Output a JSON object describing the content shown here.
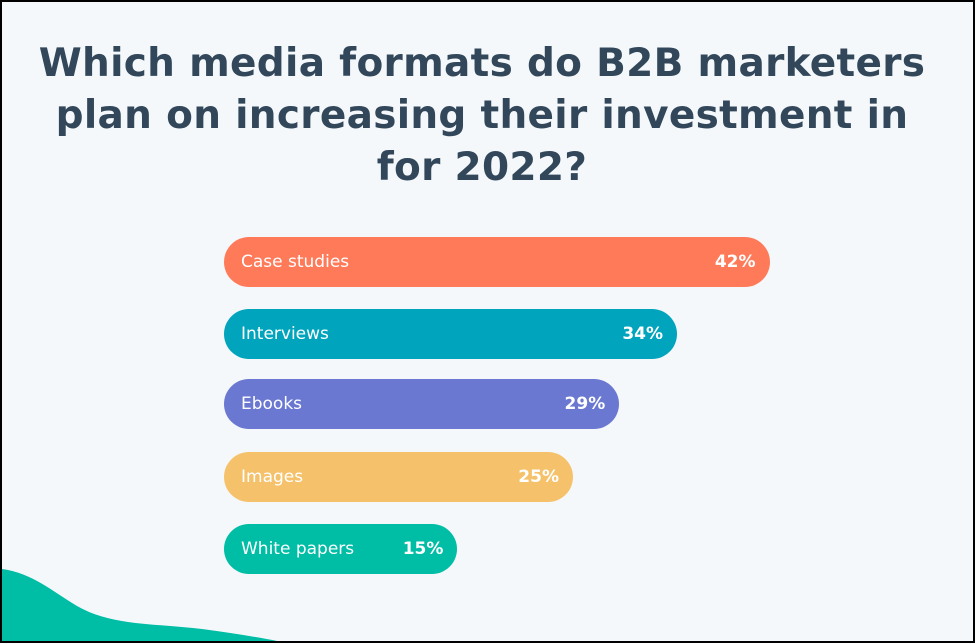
{
  "chart_data": {
    "type": "bar",
    "orientation": "horizontal",
    "title": "Which media formats do B2B marketers plan on increasing their investment in for 2022?",
    "categories": [
      "Case studies",
      "Interviews",
      "Ebooks",
      "Images",
      "White papers"
    ],
    "values": [
      42,
      34,
      29,
      25,
      15
    ],
    "value_labels": [
      "42%",
      "34%",
      "29%",
      "25%",
      "15%"
    ],
    "colors": [
      "#ff7a59",
      "#00a4bd",
      "#6a78d1",
      "#f5c26b",
      "#00bda5"
    ],
    "unit": "%",
    "xlabel": "",
    "ylabel": "",
    "grid": false
  },
  "theme": {
    "background": "#f4f8fb",
    "title_color": "#33475b",
    "wave_color": "#00bda5"
  }
}
